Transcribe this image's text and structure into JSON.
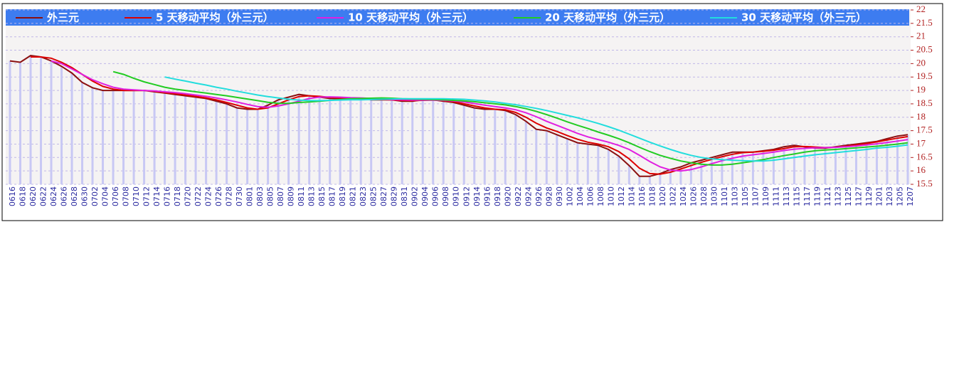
{
  "chart_data": {
    "type": "line",
    "categories": [
      "0616",
      "0618",
      "0620",
      "0622",
      "0624",
      "0626",
      "0628",
      "0630",
      "0702",
      "0704",
      "0706",
      "0708",
      "0710",
      "0712",
      "0714",
      "0716",
      "0718",
      "0720",
      "0722",
      "0724",
      "0726",
      "0728",
      "0730",
      "0801",
      "0803",
      "0805",
      "0807",
      "0809",
      "0811",
      "0813",
      "0815",
      "0817",
      "0819",
      "0821",
      "0823",
      "0825",
      "0827",
      "0829",
      "0831",
      "0902",
      "0904",
      "0906",
      "0908",
      "0910",
      "0912",
      "0914",
      "0916",
      "0918",
      "0920",
      "0922",
      "0924",
      "0926",
      "0928",
      "0930",
      "1002",
      "1004",
      "1006",
      "1008",
      "1010",
      "1012",
      "1014",
      "1016",
      "1018",
      "1020",
      "1022",
      "1024",
      "1026",
      "1028",
      "1030",
      "1101",
      "1103",
      "1105",
      "1107",
      "1109",
      "1111",
      "1113",
      "1115",
      "1117",
      "1119",
      "1121",
      "1123",
      "1125",
      "1127",
      "1129",
      "1201",
      "1203",
      "1205",
      "1207"
    ],
    "series": [
      {
        "name": "外三元",
        "color": "#8b1010",
        "values": [
          20.1,
          20.05,
          20.3,
          20.25,
          20.1,
          19.9,
          19.65,
          19.3,
          19.1,
          19.0,
          19.0,
          19.0,
          19.0,
          19.0,
          18.95,
          18.9,
          18.85,
          18.8,
          18.75,
          18.7,
          18.6,
          18.5,
          18.35,
          18.3,
          18.3,
          18.45,
          18.65,
          18.75,
          18.85,
          18.8,
          18.75,
          18.7,
          18.7,
          18.7,
          18.7,
          18.65,
          18.65,
          18.65,
          18.6,
          18.6,
          18.65,
          18.65,
          18.6,
          18.55,
          18.45,
          18.35,
          18.3,
          18.3,
          18.25,
          18.1,
          17.85,
          17.55,
          17.5,
          17.35,
          17.2,
          17.05,
          17.0,
          16.95,
          16.8,
          16.55,
          16.2,
          15.8,
          15.8,
          15.9,
          16.05,
          16.15,
          16.3,
          16.4,
          16.5,
          16.6,
          16.7,
          16.7,
          16.7,
          16.75,
          16.8,
          16.9,
          16.95,
          16.9,
          16.85,
          16.85,
          16.9,
          16.95,
          17.0,
          17.05,
          17.1,
          17.2,
          17.3,
          17.35
        ]
      },
      {
        "name": "5 天移动平均（外三元）",
        "color": "#dd0000",
        "values": [
          null,
          null,
          20.25,
          20.25,
          20.2,
          20.05,
          19.85,
          19.6,
          19.35,
          19.15,
          19.05,
          19.0,
          19.0,
          19.0,
          18.97,
          18.92,
          18.88,
          18.83,
          18.78,
          18.72,
          18.65,
          18.55,
          18.45,
          18.35,
          18.3,
          18.35,
          18.5,
          18.65,
          18.77,
          18.8,
          18.78,
          18.74,
          18.72,
          18.7,
          18.7,
          18.68,
          18.66,
          18.65,
          18.63,
          18.62,
          18.63,
          18.64,
          18.62,
          18.58,
          18.5,
          18.42,
          18.35,
          18.3,
          18.28,
          18.18,
          18.0,
          17.78,
          17.6,
          17.47,
          17.32,
          17.18,
          17.07,
          17.0,
          16.9,
          16.72,
          16.45,
          16.1,
          15.9,
          15.88,
          15.95,
          16.07,
          16.2,
          16.32,
          16.43,
          16.53,
          16.62,
          16.68,
          16.7,
          16.73,
          16.77,
          16.83,
          16.9,
          16.91,
          16.89,
          16.87,
          16.88,
          16.92,
          16.97,
          17.02,
          17.08,
          17.15,
          17.22,
          17.28
        ]
      },
      {
        "name": "10 天移动平均（外三元）",
        "color": "#e020e0",
        "values": [
          null,
          null,
          null,
          null,
          20.1,
          20.0,
          19.8,
          19.6,
          19.4,
          19.25,
          19.12,
          19.05,
          19.02,
          19.0,
          18.98,
          18.95,
          18.92,
          18.88,
          18.83,
          18.78,
          18.72,
          18.65,
          18.57,
          18.48,
          18.4,
          18.37,
          18.42,
          18.5,
          18.6,
          18.7,
          18.75,
          18.76,
          18.75,
          18.73,
          18.72,
          18.7,
          18.68,
          18.66,
          18.65,
          18.64,
          18.64,
          18.64,
          18.63,
          18.61,
          18.57,
          18.51,
          18.45,
          18.4,
          18.35,
          18.28,
          18.17,
          18.02,
          17.85,
          17.7,
          17.55,
          17.4,
          17.27,
          17.17,
          17.07,
          16.95,
          16.8,
          16.58,
          16.35,
          16.15,
          16.03,
          16.0,
          16.05,
          16.15,
          16.27,
          16.38,
          16.47,
          16.55,
          16.6,
          16.65,
          16.7,
          16.76,
          16.81,
          16.84,
          16.86,
          16.87,
          16.88,
          16.9,
          16.93,
          16.97,
          17.01,
          17.06,
          17.11,
          17.17
        ]
      },
      {
        "name": "20 天移动平均（外三元）",
        "color": "#22cc22",
        "values": [
          null,
          null,
          null,
          null,
          null,
          null,
          null,
          null,
          null,
          null,
          19.7,
          19.6,
          19.45,
          19.32,
          19.22,
          19.12,
          19.05,
          19.0,
          18.95,
          18.9,
          18.85,
          18.8,
          18.74,
          18.68,
          18.62,
          18.56,
          18.52,
          18.52,
          18.55,
          18.57,
          18.6,
          18.63,
          18.66,
          18.69,
          18.7,
          18.71,
          18.72,
          18.71,
          18.69,
          18.68,
          18.67,
          18.66,
          18.65,
          18.63,
          18.61,
          18.58,
          18.54,
          18.5,
          18.46,
          18.4,
          18.32,
          18.22,
          18.1,
          17.97,
          17.83,
          17.7,
          17.58,
          17.45,
          17.33,
          17.2,
          17.05,
          16.88,
          16.72,
          16.58,
          16.47,
          16.37,
          16.3,
          16.25,
          16.22,
          16.22,
          16.25,
          16.3,
          16.36,
          16.42,
          16.5,
          16.57,
          16.63,
          16.7,
          16.75,
          16.78,
          16.8,
          16.83,
          16.86,
          16.89,
          16.92,
          16.96,
          17.0,
          17.05
        ]
      },
      {
        "name": "30 天移动平均（外三元）",
        "color": "#22dddd",
        "values": [
          null,
          null,
          null,
          null,
          null,
          null,
          null,
          null,
          null,
          null,
          null,
          null,
          null,
          null,
          null,
          19.5,
          19.42,
          19.35,
          19.27,
          19.2,
          19.12,
          19.05,
          18.97,
          18.9,
          18.83,
          18.77,
          18.72,
          18.67,
          18.64,
          18.62,
          18.62,
          18.63,
          18.64,
          18.65,
          18.65,
          18.66,
          18.67,
          18.68,
          18.69,
          18.69,
          18.69,
          18.69,
          18.69,
          18.68,
          18.67,
          18.64,
          18.61,
          18.57,
          18.52,
          18.47,
          18.4,
          18.33,
          18.25,
          18.16,
          18.07,
          17.98,
          17.88,
          17.77,
          17.65,
          17.52,
          17.37,
          17.22,
          17.07,
          16.93,
          16.8,
          16.68,
          16.58,
          16.5,
          16.45,
          16.42,
          16.4,
          16.38,
          16.37,
          16.37,
          16.4,
          16.45,
          16.5,
          16.55,
          16.6,
          16.64,
          16.68,
          16.72,
          16.76,
          16.8,
          16.85,
          16.88,
          16.92,
          16.97
        ]
      }
    ],
    "bar_color": "#c8c8f4",
    "ylim": [
      15.5,
      22
    ],
    "yticks": [
      15.5,
      16,
      16.5,
      17,
      17.5,
      18,
      18.5,
      19,
      19.5,
      20,
      20.5,
      21,
      21.5,
      22
    ],
    "grid": true
  }
}
